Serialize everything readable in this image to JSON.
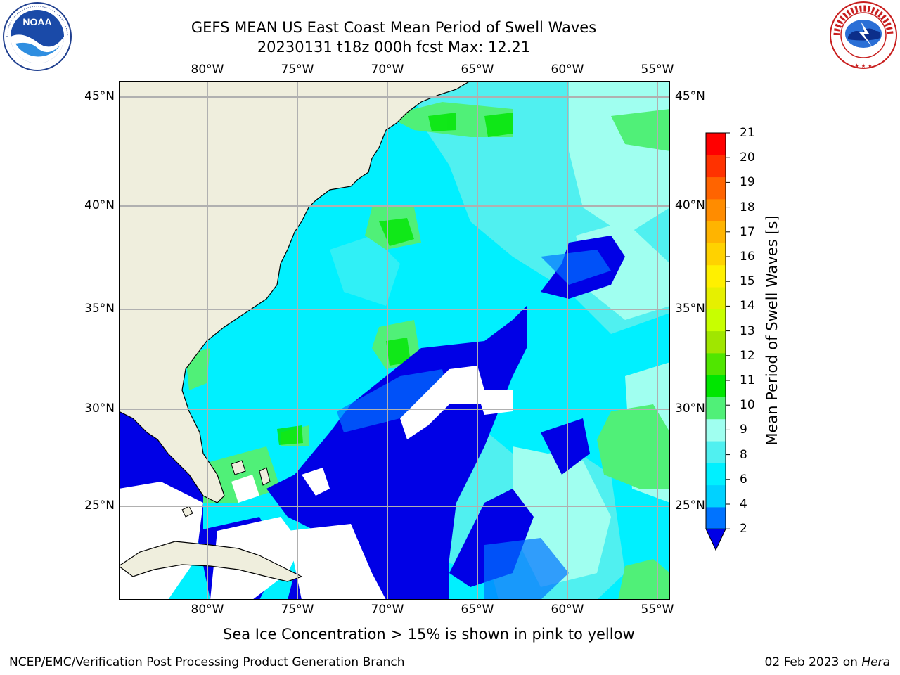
{
  "title": {
    "line1": "GEFS MEAN US East Coast Mean Period of Swell Waves",
    "line2": "20230131 t18z 000h fcst   Max: 12.21"
  },
  "map": {
    "lon_labels": [
      "80°W",
      "75°W",
      "70°W",
      "65°W",
      "60°W",
      "55°W"
    ],
    "lat_labels": [
      "45°N",
      "40°N",
      "35°N",
      "30°N",
      "25°N"
    ],
    "lon_range": [
      -85,
      -54.5
    ],
    "lat_range": [
      20.5,
      45.8
    ],
    "colors": {
      "land": "#efeedd",
      "grid": "#b0b0b0",
      "nodata": "#ffffff"
    }
  },
  "colorbar": {
    "label": "Mean Period of Swell Waves [s]",
    "ticks": [
      "21",
      "20",
      "19",
      "18",
      "17",
      "16",
      "15",
      "14",
      "13",
      "12",
      "11",
      "10",
      "9",
      "8",
      "6",
      "4",
      "2"
    ],
    "colors": [
      "#0000e6",
      "#0073ff",
      "#00d2ff",
      "#00f0ff",
      "#50f0f0",
      "#a0fff0",
      "#50f078",
      "#00e600",
      "#50e600",
      "#a0e600",
      "#c8ff00",
      "#e6f000",
      "#fff000",
      "#ffd200",
      "#ffb400",
      "#ff8c00",
      "#ff6400",
      "#ff3200",
      "#ff0000"
    ]
  },
  "footer": {
    "note": "Sea Ice Concentration > 15% is shown in pink to yellow",
    "left": "NCEP/EMC/Verification Post Processing Product Generation Branch",
    "right_date": "02 Feb 2023 on",
    "right_machine": "Hera"
  },
  "logos": {
    "left": "NOAA",
    "right_text": "NATIONAL WEATHER SERVICE"
  }
}
